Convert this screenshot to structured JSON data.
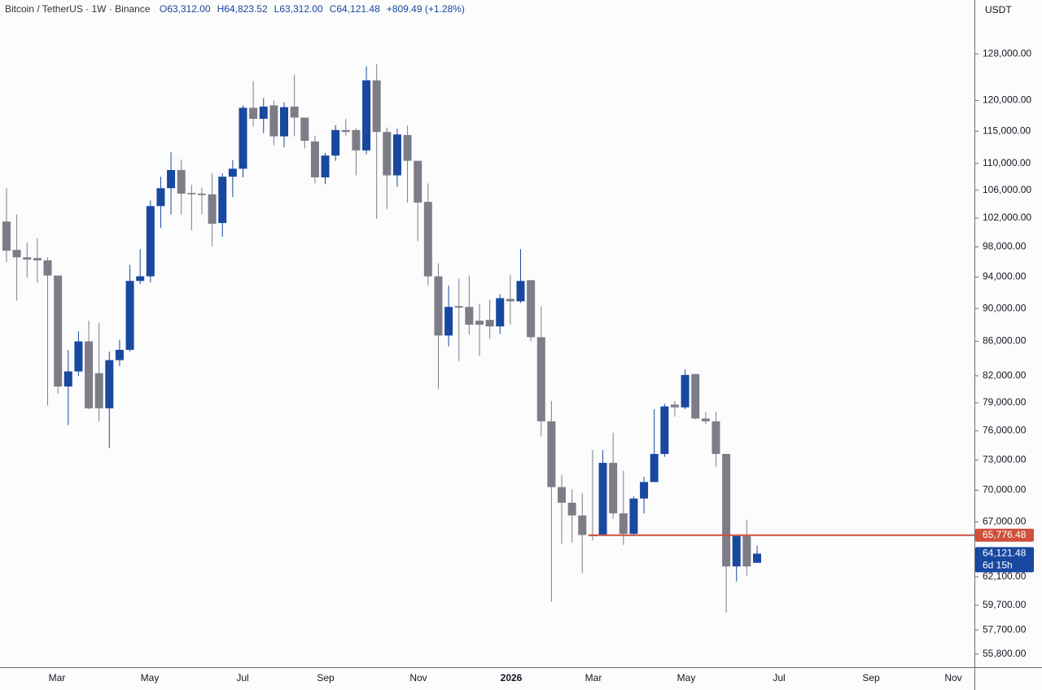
{
  "chart_data": {
    "type": "candlestick",
    "header": {
      "symbol": "Bitcoin / TetherUS · 1W · Binance",
      "open": "O63,312.00",
      "high": "H64,823.52",
      "low": "L63,312.00",
      "close": "C64,121.48",
      "change": "+809.49 (+1.28%)"
    },
    "currency": "USDT",
    "up_color": "#1848a0",
    "down_color": "#7d7d87",
    "log_scale": true,
    "ylim": [
      54800,
      137900
    ],
    "yticks": [
      {
        "value": 55800,
        "label": "55,800.00"
      },
      {
        "value": 57700,
        "label": "57,700.00"
      },
      {
        "value": 59700,
        "label": "59,700.00"
      },
      {
        "value": 62100,
        "label": "62,100.00"
      },
      {
        "value": 67000,
        "label": "67,000.00"
      },
      {
        "value": 70000,
        "label": "70,000.00"
      },
      {
        "value": 73000,
        "label": "73,000.00"
      },
      {
        "value": 76000,
        "label": "76,000.00"
      },
      {
        "value": 79000,
        "label": "79,000.00"
      },
      {
        "value": 82000,
        "label": "82,000.00"
      },
      {
        "value": 86000,
        "label": "86,000.00"
      },
      {
        "value": 90000,
        "label": "90,000.00"
      },
      {
        "value": 94000,
        "label": "94,000.00"
      },
      {
        "value": 98000,
        "label": "98,000.00"
      },
      {
        "value": 102000,
        "label": "102,000.00"
      },
      {
        "value": 106000,
        "label": "106,000.00"
      },
      {
        "value": 110000,
        "label": "110,000.00"
      },
      {
        "value": 115000,
        "label": "115,000.00"
      },
      {
        "value": 120000,
        "label": "120,000.00"
      },
      {
        "value": 128000,
        "label": "128,000.00"
      }
    ],
    "x_labels": [
      "Mar",
      "May",
      "Jul",
      "Sep",
      "Nov",
      "2026",
      "Mar",
      "May",
      "Jul",
      "Sep",
      "Nov"
    ],
    "open": [
      101500,
      97600,
      96600,
      96500,
      96200,
      94200,
      80800,
      82500,
      86000,
      82300,
      78400,
      83800,
      85000,
      93500,
      94100,
      103700,
      106300,
      109000,
      105600,
      105500,
      105400,
      101300,
      108000,
      109200,
      118800,
      117000,
      119200,
      114200,
      119000,
      117200,
      113400,
      107900,
      111200,
      115200,
      115200,
      112000,
      123400,
      114900,
      108200,
      114400,
      110400,
      104300,
      94100,
      86700,
      90300,
      90200,
      88500,
      88600,
      87800,
      91200,
      90900,
      93600,
      86500,
      77000,
      70300,
      68800,
      67600,
      65800,
      65800,
      72700,
      67800,
      65900,
      69200,
      70800,
      73600,
      78800,
      78500,
      82200,
      77300,
      77000,
      73600,
      63000,
      65700,
      63312
    ],
    "high": [
      106300,
      102500,
      98600,
      99200,
      96600,
      94100,
      85000,
      87200,
      88500,
      88200,
      84800,
      86200,
      95600,
      97700,
      104500,
      108000,
      111700,
      110600,
      106800,
      106400,
      108500,
      108500,
      110500,
      119200,
      123300,
      120400,
      120000,
      119700,
      124400,
      117200,
      114300,
      111600,
      116000,
      117000,
      115500,
      125800,
      126200,
      115600,
      115400,
      115900,
      110400,
      107000,
      95800,
      92900,
      93800,
      94200,
      90600,
      91100,
      91800,
      94300,
      97700,
      93600,
      90300,
      79200,
      71500,
      70100,
      69700,
      74000,
      74000,
      75800,
      71900,
      69400,
      71300,
      78300,
      78900,
      79200,
      82700,
      82200,
      78000,
      78000,
      73600,
      65800,
      67200,
      64823.52
    ],
    "low": [
      96000,
      91000,
      93900,
      93300,
      78700,
      80000,
      76600,
      82000,
      78300,
      77000,
      74200,
      83100,
      84800,
      93100,
      93300,
      100600,
      102500,
      102500,
      100300,
      102500,
      98100,
      99400,
      105000,
      107900,
      115800,
      114700,
      112800,
      112500,
      114200,
      112300,
      107000,
      106900,
      110400,
      114300,
      108200,
      111400,
      101900,
      103300,
      106500,
      104200,
      98800,
      92900,
      80500,
      85400,
      83700,
      86800,
      84300,
      86300,
      86900,
      88000,
      90700,
      86000,
      75400,
      60000,
      65000,
      65100,
      62400,
      65300,
      65700,
      67300,
      64900,
      65700,
      67800,
      70800,
      73300,
      77500,
      78300,
      77200,
      76700,
      72300,
      59100,
      61700,
      62200,
      63312
    ],
    "close": [
      97500,
      96600,
      96300,
      96200,
      94200,
      80800,
      82500,
      86000,
      78400,
      78400,
      83800,
      85000,
      93500,
      94100,
      103700,
      106300,
      109000,
      105500,
      105400,
      105300,
      101200,
      108000,
      109200,
      118800,
      117000,
      119000,
      114200,
      118900,
      117200,
      113500,
      107900,
      111200,
      115200,
      114900,
      112000,
      123400,
      114900,
      108200,
      114500,
      110400,
      104200,
      94100,
      86700,
      90200,
      90100,
      88000,
      88000,
      87800,
      91300,
      90900,
      93500,
      86500,
      77000,
      70300,
      68800,
      67600,
      65800,
      65700,
      72700,
      67800,
      65900,
      69200,
      70800,
      73600,
      78600,
      78500,
      82100,
      77300,
      77000,
      73600,
      63000,
      65700,
      63000,
      64121.48
    ],
    "price_line": {
      "value": 65776.48,
      "label": "65,776.48",
      "color": "#d0503c"
    },
    "last_price": {
      "value": 64121.48,
      "label": "64,121.48"
    },
    "countdown": "6d 15h"
  }
}
